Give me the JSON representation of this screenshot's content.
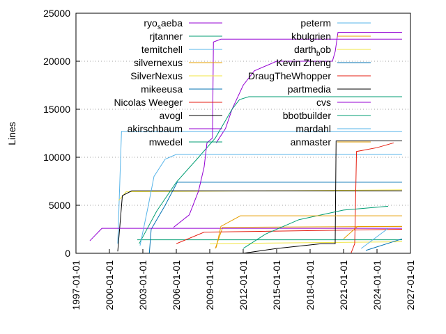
{
  "chart_data": {
    "type": "line",
    "y_label": "Lines",
    "xlim": [
      "1997-01-01",
      "2027-01-01"
    ],
    "xticks": [
      "1997-01-01",
      "2000-01-01",
      "2003-01-01",
      "2006-01-01",
      "2009-01-01",
      "2012-01-01",
      "2015-01-01",
      "2018-01-01",
      "2021-01-01",
      "2024-01-01",
      "2027-01-01"
    ],
    "ylim": [
      0,
      25000
    ],
    "yticks": [
      0,
      5000,
      10000,
      15000,
      20000,
      25000
    ],
    "grid": true,
    "series": [
      {
        "name": "ryo_saeba",
        "color": "#9400d3",
        "x": [
          "2009-08-01",
          "2010-06-01",
          "2011-01-01",
          "2012-01-01",
          "2013-01-01",
          "2015-01-01",
          "2020-01-01",
          "2020-04-01",
          "2020-07-01",
          "2026-04-01"
        ],
        "values": [
          11500,
          13000,
          15000,
          17500,
          19000,
          20000,
          20000,
          21000,
          23000,
          23000
        ]
      },
      {
        "name": "rjtanner",
        "color": "#009e73",
        "x": [
          "2002-07-01",
          "2026-04-01"
        ],
        "values": [
          1400,
          1400
        ]
      },
      {
        "name": "temitchell",
        "color": "#56b4e9",
        "x": [
          "2000-10-01",
          "2001-02-01",
          "2026-04-01"
        ],
        "values": [
          1000,
          12700,
          12700
        ]
      },
      {
        "name": "silvernexus",
        "color": "#e69f00",
        "x": [
          "2009-07-01",
          "2010-03-01",
          "2026-04-01"
        ],
        "values": [
          500,
          2700,
          2800
        ]
      },
      {
        "name": "SilverNexus",
        "color": "#f0e442",
        "x": [
          "2000-11-01",
          "2001-07-01",
          "2026-04-01"
        ],
        "values": [
          5500,
          6400,
          6600
        ]
      },
      {
        "name": "mikeeusa",
        "color": "#0072b2",
        "x": [
          "2003-08-01",
          "2003-10-01",
          "2005-01-01",
          "2006-02-01",
          "2026-04-01"
        ],
        "values": [
          0,
          2500,
          5000,
          7400,
          7400
        ]
      },
      {
        "name": "Nicolas Weeger",
        "color": "#e51e10",
        "x": [
          "2006-01-01",
          "2008-07-01",
          "2026-04-01"
        ],
        "values": [
          1000,
          2200,
          2500
        ]
      },
      {
        "name": "avogl",
        "color": "#000000",
        "x": [
          "2000-10-01",
          "2001-03-01",
          "2002-01-01",
          "2026-04-01"
        ],
        "values": [
          200,
          6000,
          6500,
          6500
        ]
      },
      {
        "name": "akirschbaum",
        "color": "#9400d3",
        "x": [
          "1998-04-01",
          "1999-05-01",
          "2026-04-01"
        ],
        "values": [
          1300,
          2600,
          2600
        ]
      },
      {
        "name": "mwedel",
        "color": "#009e73",
        "x": [
          "2002-09-01",
          "2004-04-01",
          "2006-01-01",
          "2008-01-01",
          "2009-07-01",
          "2011-01-01",
          "2011-09-01",
          "2012-07-01",
          "2026-04-01"
        ],
        "values": [
          1000,
          4400,
          7400,
          10000,
          12000,
          15000,
          16000,
          16300,
          16300
        ]
      },
      {
        "name": "peterm",
        "color": "#56b4e9",
        "x": [
          "2002-10-01",
          "2003-07-01",
          "2004-01-01",
          "2005-01-01",
          "2006-01-01",
          "2026-04-01"
        ],
        "values": [
          800,
          5000,
          8000,
          9800,
          10300,
          10300
        ]
      },
      {
        "name": "kbulgrien",
        "color": "#e69f00",
        "x": [
          "2021-01-01",
          "2022-04-01",
          "2026-04-01"
        ],
        "values": [
          1500,
          2800,
          2800
        ]
      },
      {
        "name": "darth_bob",
        "color": "#f0e442",
        "x": [
          "2009-01-01",
          "2026-04-01"
        ],
        "values": [
          1000,
          1200
        ]
      },
      {
        "name": "Kevin Zheng",
        "color": "#0072b2",
        "x": [
          "2023-01-01",
          "2026-04-01"
        ],
        "values": [
          300,
          1500
        ]
      },
      {
        "name": "DraugTheWhopper",
        "color": "#e51e10",
        "x": [
          "2021-09-01",
          "2022-01-01",
          "2022-03-01",
          "2024-01-01",
          "2025-07-01"
        ],
        "values": [
          0,
          1000,
          10600,
          11000,
          11500
        ]
      },
      {
        "name": "partmedia",
        "color": "#000000",
        "x": [
          "2012-01-01",
          "2015-01-01",
          "2019-01-01",
          "2020-04-01",
          "2020-05-01",
          "2026-04-01"
        ],
        "values": [
          0,
          500,
          1000,
          1000,
          11700,
          11700
        ]
      },
      {
        "name": "cvs",
        "color": "#9400d3",
        "x": [
          "2005-10-01",
          "2007-03-01",
          "2008-01-01",
          "2008-07-01",
          "2008-10-01",
          "2009-04-01",
          "2009-05-01",
          "2010-01-01",
          "2026-04-01"
        ],
        "values": [
          2700,
          4000,
          6500,
          9000,
          11500,
          12000,
          22000,
          22300,
          22300
        ]
      },
      {
        "name": "bbotbuilder",
        "color": "#009e73",
        "x": [
          "2012-01-01",
          "2014-01-01",
          "2017-01-01",
          "2021-01-01",
          "2025-01-01"
        ],
        "values": [
          500,
          2000,
          3500,
          4500,
          4900
        ]
      },
      {
        "name": "mardahl",
        "color": "#56b4e9",
        "x": [
          "2022-08-01",
          "2025-01-01"
        ],
        "values": [
          500,
          2600
        ]
      },
      {
        "name": "anmaster",
        "color": "#e69f00",
        "x": [
          "2009-08-01",
          "2010-01-01",
          "2011-10-01",
          "2026-04-01"
        ],
        "values": [
          600,
          2800,
          3900,
          3900
        ]
      }
    ]
  }
}
